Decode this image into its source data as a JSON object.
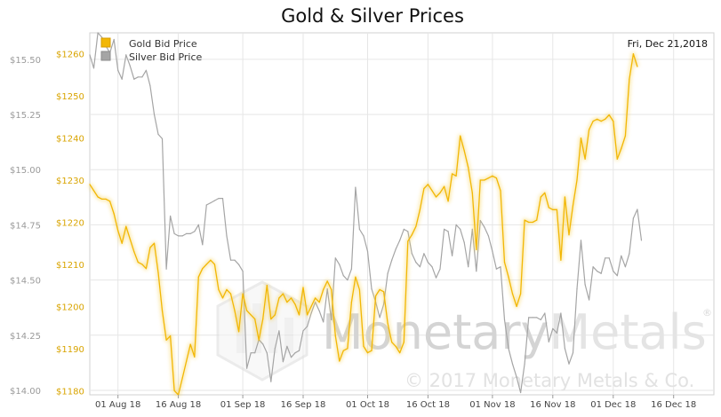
{
  "chart_data": {
    "type": "line",
    "title": "Gold & Silver Prices",
    "date_label": "Fri, Dec 21,2018",
    "x_ticks": [
      "01 Aug 18",
      "16 Aug 18",
      "01 Sep 18",
      "16 Sep 18",
      "01 Oct 18",
      "16 Oct 18",
      "01 Nov 18",
      "16 Nov 18",
      "01 Dec 18",
      "16 Dec 18"
    ],
    "y_left": {
      "label": "",
      "ticks": [
        "$15.50",
        "$15.25",
        "$15.00",
        "$14.75",
        "$14.50",
        "$14.25",
        "$14.00"
      ],
      "values": [
        15.5,
        15.25,
        15.0,
        14.75,
        14.5,
        14.25,
        14.0
      ],
      "range": [
        13.98,
        15.62
      ]
    },
    "y_right": {
      "label": "",
      "ticks": [
        "$1260",
        "$1250",
        "$1240",
        "$1230",
        "$1220",
        "$1210",
        "$1200",
        "$1190",
        "$1180"
      ],
      "values": [
        1260,
        1250,
        1240,
        1230,
        1220,
        1210,
        1200,
        1190,
        1180
      ],
      "range": [
        1179,
        1265
      ]
    },
    "x_range": [
      0,
      155
    ],
    "tick_positions": [
      7,
      22,
      38,
      53,
      69,
      84,
      100,
      115,
      130,
      145
    ],
    "grid": true,
    "legend_position": "top-left",
    "series": [
      {
        "name": "Gold Bid Price",
        "color": "#f2b705",
        "axis": "right",
        "points": [
          [
            0,
            1229
          ],
          [
            1,
            1227.5
          ],
          [
            2,
            1226
          ],
          [
            3,
            1225.5
          ],
          [
            4,
            1225.5
          ],
          [
            5,
            1225
          ],
          [
            6,
            1222
          ],
          [
            7,
            1218
          ],
          [
            8,
            1215
          ],
          [
            9,
            1219
          ],
          [
            10,
            1216
          ],
          [
            11,
            1213
          ],
          [
            12,
            1210.5
          ],
          [
            13,
            1210
          ],
          [
            14,
            1209
          ],
          [
            15,
            1214
          ],
          [
            16,
            1215
          ],
          [
            17,
            1208
          ],
          [
            18,
            1199
          ],
          [
            19,
            1192
          ],
          [
            20,
            1193
          ],
          [
            21,
            1180
          ],
          [
            22,
            1179
          ],
          [
            23,
            1183
          ],
          [
            24,
            1187
          ],
          [
            25,
            1191
          ],
          [
            26,
            1188
          ],
          [
            27,
            1207
          ],
          [
            28,
            1209
          ],
          [
            29,
            1210
          ],
          [
            30,
            1211
          ],
          [
            31,
            1210
          ],
          [
            32,
            1204
          ],
          [
            33,
            1202
          ],
          [
            34,
            1204
          ],
          [
            35,
            1203
          ],
          [
            36,
            1199
          ],
          [
            37,
            1194
          ],
          [
            38,
            1203
          ],
          [
            39,
            1199
          ],
          [
            40,
            1198
          ],
          [
            41,
            1197
          ],
          [
            42,
            1192
          ],
          [
            43,
            1197
          ],
          [
            44,
            1205
          ],
          [
            45,
            1197
          ],
          [
            46,
            1198
          ],
          [
            47,
            1202
          ],
          [
            48,
            1203
          ],
          [
            49,
            1201
          ],
          [
            50,
            1202
          ],
          [
            51,
            1200.5
          ],
          [
            52,
            1198
          ],
          [
            53,
            1204.5
          ],
          [
            54,
            1198
          ],
          [
            55,
            1200
          ],
          [
            56,
            1202
          ],
          [
            57,
            1201
          ],
          [
            58,
            1204
          ],
          [
            59,
            1206
          ],
          [
            60,
            1204
          ],
          [
            61,
            1193
          ],
          [
            62,
            1187
          ],
          [
            63,
            1189.5
          ],
          [
            64,
            1190
          ],
          [
            65,
            1201
          ],
          [
            66,
            1207
          ],
          [
            67,
            1204
          ],
          [
            68,
            1190.5
          ],
          [
            69,
            1189
          ],
          [
            70,
            1189.5
          ],
          [
            71,
            1202.5
          ],
          [
            72,
            1204
          ],
          [
            73,
            1203.5
          ],
          [
            74,
            1196
          ],
          [
            75,
            1191.5
          ],
          [
            76,
            1190.5
          ],
          [
            77,
            1189
          ],
          [
            78,
            1191.5
          ],
          [
            79,
            1215.5
          ],
          [
            80,
            1217
          ],
          [
            81,
            1219
          ],
          [
            82,
            1223
          ],
          [
            83,
            1228
          ],
          [
            84,
            1229
          ],
          [
            85,
            1227.5
          ],
          [
            86,
            1226
          ],
          [
            87,
            1227
          ],
          [
            88,
            1228.5
          ],
          [
            89,
            1225
          ],
          [
            90,
            1231.5
          ],
          [
            91,
            1231
          ],
          [
            92,
            1240.5
          ],
          [
            93,
            1237
          ],
          [
            94,
            1233
          ],
          [
            95,
            1227
          ],
          [
            96,
            1213.5
          ],
          [
            97,
            1230
          ],
          [
            98,
            1230
          ],
          [
            99,
            1230.5
          ],
          [
            100,
            1231
          ],
          [
            101,
            1230.5
          ],
          [
            102,
            1227.5
          ],
          [
            103,
            1210.5
          ],
          [
            104,
            1207
          ],
          [
            105,
            1203
          ],
          [
            106,
            1200
          ],
          [
            107,
            1203
          ],
          [
            108,
            1220.5
          ],
          [
            109,
            1220
          ],
          [
            110,
            1220
          ],
          [
            111,
            1220.5
          ],
          [
            112,
            1226
          ],
          [
            113,
            1227
          ],
          [
            114,
            1223.5
          ],
          [
            115,
            1223
          ],
          [
            116,
            1223
          ],
          [
            117,
            1211
          ],
          [
            118,
            1226
          ],
          [
            119,
            1217
          ],
          [
            120,
            1224
          ],
          [
            121,
            1230
          ],
          [
            122,
            1240
          ],
          [
            123,
            1235
          ],
          [
            124,
            1242
          ],
          [
            125,
            1244
          ],
          [
            126,
            1244.5
          ],
          [
            127,
            1244
          ],
          [
            128,
            1244.5
          ],
          [
            129,
            1245.5
          ],
          [
            130,
            1244
          ],
          [
            131,
            1235
          ],
          [
            132,
            1237.5
          ],
          [
            133,
            1240.5
          ],
          [
            134,
            1254
          ],
          [
            135,
            1260
          ],
          [
            136,
            1257
          ]
        ]
      },
      {
        "name": "Silver Bid Price",
        "color": "#a5a5a5",
        "axis": "left",
        "points": [
          [
            0,
            15.52
          ],
          [
            1,
            15.46
          ],
          [
            2,
            15.62
          ],
          [
            3,
            15.6
          ],
          [
            4,
            15.56
          ],
          [
            5,
            15.53
          ],
          [
            6,
            15.59
          ],
          [
            7,
            15.45
          ],
          [
            8,
            15.41
          ],
          [
            9,
            15.52
          ],
          [
            10,
            15.47
          ],
          [
            11,
            15.41
          ],
          [
            12,
            15.42
          ],
          [
            13,
            15.42
          ],
          [
            14,
            15.45
          ],
          [
            15,
            15.38
          ],
          [
            16,
            15.25
          ],
          [
            17,
            15.16
          ],
          [
            18,
            15.14
          ],
          [
            19,
            14.55
          ],
          [
            20,
            14.79
          ],
          [
            21,
            14.71
          ],
          [
            22,
            14.7
          ],
          [
            23,
            14.7
          ],
          [
            24,
            14.71
          ],
          [
            25,
            14.71
          ],
          [
            26,
            14.72
          ],
          [
            27,
            14.75
          ],
          [
            28,
            14.66
          ],
          [
            29,
            14.84
          ],
          [
            30,
            14.85
          ],
          [
            31,
            14.86
          ],
          [
            32,
            14.87
          ],
          [
            33,
            14.87
          ],
          [
            34,
            14.7
          ],
          [
            35,
            14.59
          ],
          [
            36,
            14.59
          ],
          [
            37,
            14.57
          ],
          [
            38,
            14.54
          ],
          [
            39,
            14.1
          ],
          [
            40,
            14.17
          ],
          [
            41,
            14.17
          ],
          [
            42,
            14.23
          ],
          [
            43,
            14.21
          ],
          [
            44,
            14.17
          ],
          [
            45,
            14.04
          ],
          [
            46,
            14.19
          ],
          [
            47,
            14.27
          ],
          [
            48,
            14.13
          ],
          [
            49,
            14.2
          ],
          [
            50,
            14.15
          ],
          [
            51,
            14.17
          ],
          [
            52,
            14.18
          ],
          [
            53,
            14.27
          ],
          [
            54,
            14.29
          ],
          [
            55,
            14.35
          ],
          [
            56,
            14.4
          ],
          [
            57,
            14.36
          ],
          [
            58,
            14.31
          ],
          [
            59,
            14.46
          ],
          [
            60,
            14.32
          ],
          [
            61,
            14.6
          ],
          [
            62,
            14.57
          ],
          [
            63,
            14.52
          ],
          [
            64,
            14.5
          ],
          [
            65,
            14.55
          ],
          [
            66,
            14.92
          ],
          [
            67,
            14.73
          ],
          [
            68,
            14.7
          ],
          [
            69,
            14.63
          ],
          [
            70,
            14.46
          ],
          [
            71,
            14.4
          ],
          [
            72,
            14.33
          ],
          [
            73,
            14.39
          ],
          [
            74,
            14.53
          ],
          [
            75,
            14.59
          ],
          [
            76,
            14.64
          ],
          [
            77,
            14.68
          ],
          [
            78,
            14.73
          ],
          [
            79,
            14.72
          ],
          [
            80,
            14.62
          ],
          [
            81,
            14.58
          ],
          [
            82,
            14.56
          ],
          [
            83,
            14.62
          ],
          [
            84,
            14.58
          ],
          [
            85,
            14.56
          ],
          [
            86,
            14.51
          ],
          [
            87,
            14.55
          ],
          [
            88,
            14.73
          ],
          [
            89,
            14.72
          ],
          [
            90,
            14.61
          ],
          [
            91,
            14.75
          ],
          [
            92,
            14.73
          ],
          [
            93,
            14.67
          ],
          [
            94,
            14.56
          ],
          [
            95,
            14.73
          ],
          [
            96,
            14.54
          ],
          [
            97,
            14.77
          ],
          [
            98,
            14.74
          ],
          [
            99,
            14.7
          ],
          [
            100,
            14.63
          ],
          [
            101,
            14.55
          ],
          [
            102,
            14.56
          ],
          [
            103,
            14.32
          ],
          [
            104,
            14.19
          ],
          [
            105,
            14.12
          ],
          [
            106,
            14.06
          ],
          [
            107,
            13.99
          ],
          [
            108,
            14.12
          ],
          [
            109,
            14.33
          ],
          [
            110,
            14.33
          ],
          [
            111,
            14.33
          ],
          [
            112,
            14.32
          ],
          [
            113,
            14.35
          ],
          [
            114,
            14.22
          ],
          [
            115,
            14.28
          ],
          [
            116,
            14.26
          ],
          [
            117,
            14.35
          ],
          [
            118,
            14.19
          ],
          [
            119,
            14.12
          ],
          [
            120,
            14.17
          ],
          [
            121,
            14.46
          ],
          [
            122,
            14.68
          ],
          [
            123,
            14.48
          ],
          [
            124,
            14.41
          ],
          [
            125,
            14.56
          ],
          [
            126,
            14.54
          ],
          [
            127,
            14.53
          ],
          [
            128,
            14.6
          ],
          [
            129,
            14.6
          ],
          [
            130,
            14.54
          ],
          [
            131,
            14.52
          ],
          [
            132,
            14.61
          ],
          [
            133,
            14.56
          ],
          [
            134,
            14.62
          ],
          [
            135,
            14.78
          ],
          [
            136,
            14.82
          ],
          [
            137,
            14.68
          ]
        ]
      }
    ]
  },
  "watermark": {
    "brand": "MonetaryMetals",
    "brand_part1": "Monetary",
    "brand_part2": "Metals",
    "copyright": "© 2017 Monetary Metals & Co.",
    "registered": "®"
  }
}
